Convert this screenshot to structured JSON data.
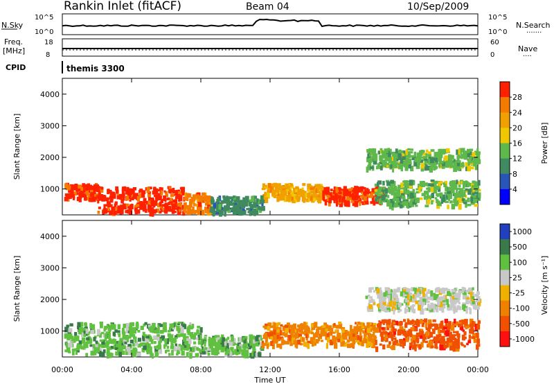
{
  "header": {
    "station": "Rankin Inlet (fitACF)",
    "beam": "Beam 04",
    "date": "10/Sep/2009"
  },
  "noise_panel": {
    "left_label": "N.Sky",
    "left_ticks": [
      "10^5",
      "10^0"
    ],
    "right_ticks": [
      "10^5",
      "10^0"
    ],
    "right_label": "N.Search",
    "right_label_line": "·······"
  },
  "freq_panel": {
    "left_label_1": "Freq.",
    "left_label_2": "[MHz]",
    "left_ticks": [
      "18",
      "8"
    ],
    "right_ticks": [
      "60",
      "0"
    ],
    "right_label": "Nave",
    "right_label_line": "····"
  },
  "cpid": {
    "label": "CPID",
    "value": "themis 3300"
  },
  "x_axis": {
    "title": "Time UT",
    "ticks": [
      "00:00",
      "04:00",
      "08:00",
      "12:00",
      "16:00",
      "20:00",
      "00:00"
    ]
  },
  "chart_data": [
    {
      "type": "heatmap",
      "title": "",
      "xlabel": "Time UT",
      "ylabel": "Slant Range [km]",
      "xlim": [
        0,
        24
      ],
      "ylim": [
        180,
        4500
      ],
      "yticks": [
        "1000",
        "2000",
        "3000",
        "4000"
      ],
      "colorbar": {
        "label": "Power [dB]",
        "ticks": [
          "4",
          "8",
          "12",
          "16",
          "20",
          "24",
          "28"
        ],
        "colors": [
          "#0000ff",
          "#2a55b8",
          "#3f8a5e",
          "#5fb84b",
          "#f0c800",
          "#f0a000",
          "#f57a00",
          "#ff2000"
        ]
      },
      "regions": [
        {
          "t0": 0.1,
          "t1": 2.0,
          "r0": 700,
          "r1": 1200,
          "level": 28
        },
        {
          "t0": 2.0,
          "t1": 7.0,
          "r0": 300,
          "r1": 1100,
          "level": 28
        },
        {
          "t0": 7.0,
          "t1": 8.5,
          "r0": 300,
          "r1": 900,
          "level": 24
        },
        {
          "t0": 11.5,
          "t1": 15.0,
          "r0": 700,
          "r1": 1200,
          "level": 20
        },
        {
          "t0": 15.0,
          "t1": 18.5,
          "r0": 600,
          "r1": 1100,
          "level": 28
        },
        {
          "t0": 18.0,
          "t1": 24.0,
          "r0": 500,
          "r1": 1300,
          "level": 12
        },
        {
          "t0": 17.5,
          "t1": 24.0,
          "r0": 1700,
          "r1": 2300,
          "level": 12
        },
        {
          "t0": 8.5,
          "t1": 11.5,
          "r0": 300,
          "r1": 800,
          "level": 8
        }
      ]
    },
    {
      "type": "heatmap",
      "title": "",
      "xlabel": "Time UT",
      "ylabel": "Slant Range [km]",
      "xlim": [
        0,
        24
      ],
      "ylim": [
        180,
        4500
      ],
      "yticks": [
        "1000",
        "2000",
        "3000",
        "4000"
      ],
      "colorbar": {
        "label": "Velocity [m s⁻¹]",
        "ticks": [
          "1000",
          "500",
          "100",
          "25",
          "-25",
          "-100",
          "-500",
          "-1000"
        ],
        "colors": [
          "#2040c0",
          "#3a7a4a",
          "#60c040",
          "#c8c8c8",
          "#f0b000",
          "#f08000",
          "#f05000",
          "#ff1010"
        ]
      },
      "regions": [
        {
          "t0": 0.1,
          "t1": 8.0,
          "r0": 300,
          "r1": 1300,
          "level": 100
        },
        {
          "t0": 8.0,
          "t1": 11.5,
          "r0": 300,
          "r1": 900,
          "level": 100
        },
        {
          "t0": 11.5,
          "t1": 18.0,
          "r0": 600,
          "r1": 1300,
          "level": -100
        },
        {
          "t0": 18.0,
          "t1": 24.0,
          "r0": 500,
          "r1": 1400,
          "level": -500
        },
        {
          "t0": 17.5,
          "t1": 24.0,
          "r0": 1700,
          "r1": 2400,
          "level": 0
        }
      ]
    }
  ]
}
